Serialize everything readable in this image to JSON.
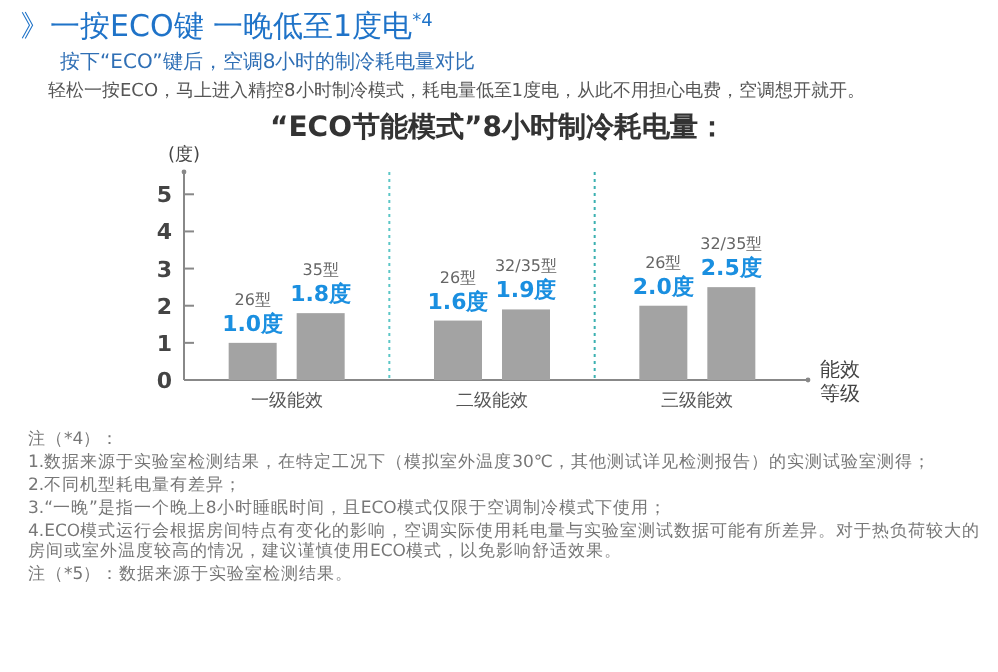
{
  "chart_data": {
    "type": "bar",
    "title": "》一按ECO键 一晚低至1度电$^{*4}$",
    "subtitle": "按下“ECO”键后，空调8小时的制冷耗电量对比",
    "categories": [
      "一级能效",
      "二级能效",
      "三级能效"
    ],
    "series": [
      {
        "color": "#a3a3a3",
        "values": [
          1.0,
          1.6,
          2.0
        ],
        "value_labels": [
          "1.0度",
          "1.6度",
          "2.0度"
        ]
      },
      {
        "color": "#a3a3a3",
        "values": [
          1.8,
          1.9,
          2.5
        ],
        "value_labels": [
          "1.8度",
          "1.9度",
          "2.5度"
        ]
      }
    ],
    "ylabel": "(度)",
    "xlabel": "能效等级",
    "ylim": [
      0,
      5.6
    ],
    "yticks": [
      0,
      1,
      2,
      3,
      4,
      5
    ],
    "annotations": [
      "轻松一按ECO，马上进入精控8小时制冷模式，耗电量低至1度电，从此不用担心电费，空调想开就开。",
      "“ECO节能模式”8小时制冷耗电量：",
      "26型",
      "35型",
      "26型",
      "32/35型",
      "26型",
      "32/35型",
      "注（*4）：",
      "1.数据来源于实验室检测结果，在特定工况下（模拟室外温度30℃，其他测试详见检测报告）的实测试验室测得；",
      "2.不同机型耗电量有差异；",
      "3.“一晚”是指一个晚上8小时睡眠时间，且ECO模式仅限于空调制冷模式下使用；",
      "4.ECO模式运行会根据房间特点有变化的影响，空调实际使用耗电量与实验室测试数据可能有所差异。对于热负荷较大的房间或室外温度较高的情况，建议谨慎使用ECO模式，以免影响舒适效果。",
      "注（*5）：数据来源于实验室检测结果。"
    ]
  }
}
